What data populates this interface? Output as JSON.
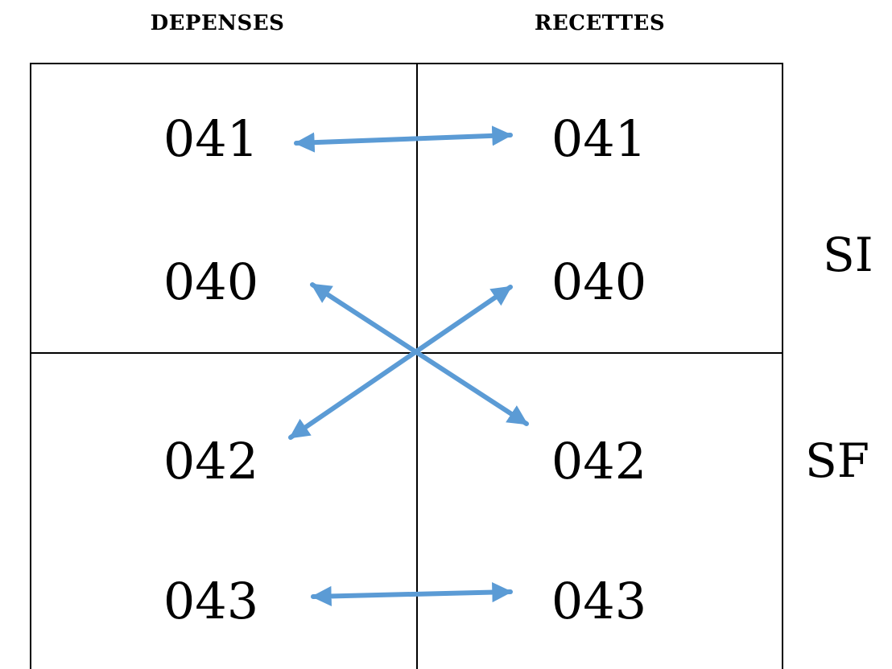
{
  "headers": {
    "depenses": "DEPENSES",
    "recettes": "RECETTES"
  },
  "depenses": {
    "row1": "041",
    "row2": "040",
    "row3": "042",
    "row4": "043"
  },
  "recettes": {
    "row1": "041",
    "row2": "040",
    "row3": "042",
    "row4": "043"
  },
  "sections": {
    "upper": "SI",
    "lower": "SF"
  },
  "colors": {
    "arrow": "#5b9bd5",
    "grid": "#000000"
  }
}
